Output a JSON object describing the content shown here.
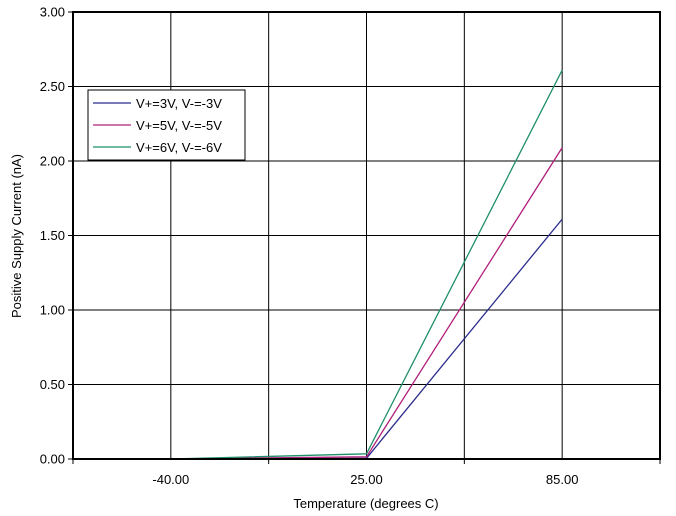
{
  "chart_data": {
    "type": "line",
    "xlabel": "Temperature (degrees C)",
    "ylabel": "Positive Supply Current (nA)",
    "categories": [
      "-40.00",
      "25.00",
      "85.00"
    ],
    "x": [
      -40,
      25,
      85
    ],
    "ylim": [
      0,
      3
    ],
    "yticks": [
      "0.00",
      "0.50",
      "1.00",
      "1.50",
      "2.00",
      "2.50",
      "3.00"
    ],
    "ytick_values": [
      0,
      0.5,
      1,
      1.5,
      2,
      2.5,
      3
    ],
    "grid": true,
    "legend_position": "top-left",
    "series": [
      {
        "name": "V+=3V, V-=-3V",
        "color": "#2b2b8c",
        "values": [
          0.0,
          0.005,
          1.61
        ]
      },
      {
        "name": "V+=5V, V-=-5V",
        "color": "#b0207a",
        "values": [
          0.0,
          0.015,
          2.09
        ]
      },
      {
        "name": "V+=6V, V-=-6V",
        "color": "#1f8f6a",
        "values": [
          0.0,
          0.035,
          2.61
        ]
      }
    ]
  }
}
